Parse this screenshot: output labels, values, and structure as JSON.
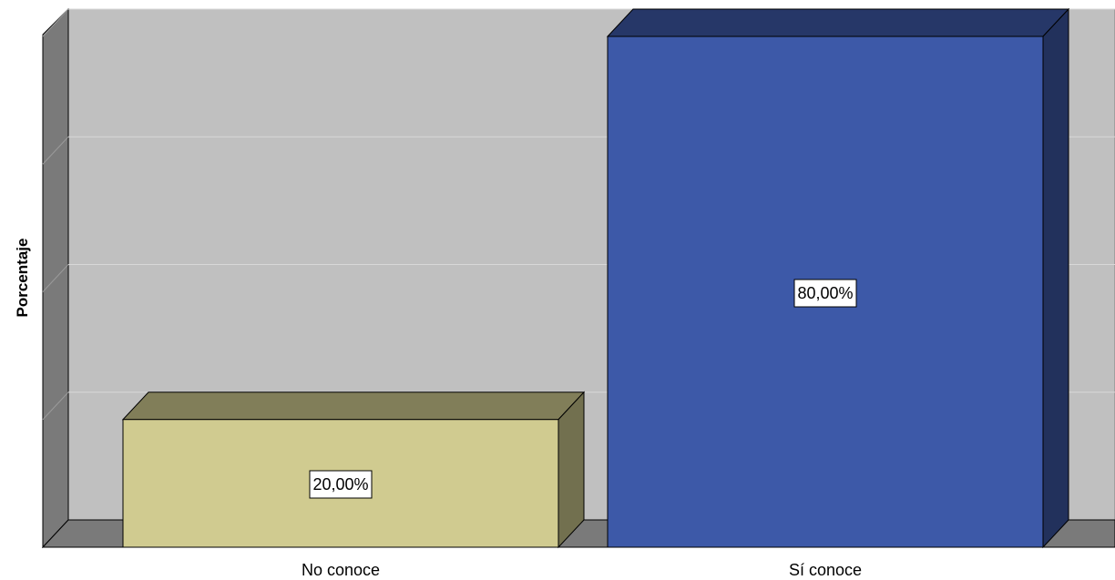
{
  "chart_data": {
    "type": "bar",
    "title": "",
    "xlabel": "",
    "ylabel": "Porcentaje",
    "categories": [
      "No conoce",
      "Sí conoce"
    ],
    "values": [
      20,
      80
    ],
    "data_labels": [
      "20,00%",
      "80,00%"
    ],
    "ylim": [
      0,
      80
    ],
    "grid": true,
    "legend": "none",
    "style": "3d",
    "colors": {
      "bars": [
        "#d0cb90",
        "#3d59a8"
      ],
      "background": "#c0c0c0",
      "wall": "#7a7a7a",
      "gridline": "#d8d8d8"
    }
  }
}
